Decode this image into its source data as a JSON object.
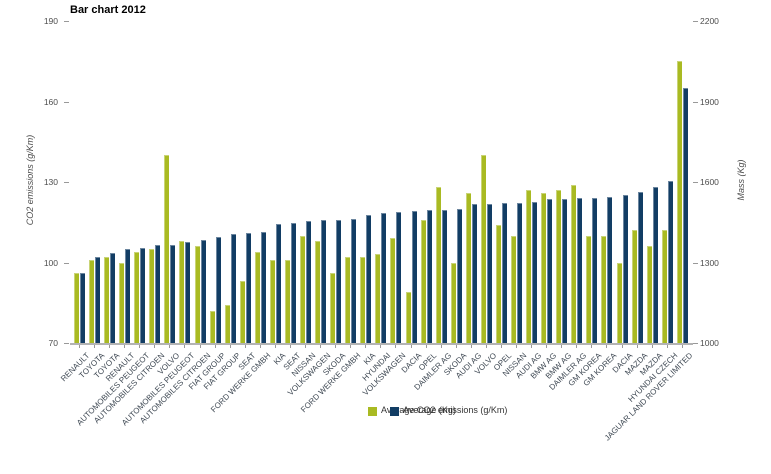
{
  "title": "Bar chart 2012",
  "legend": {
    "co2_label": "Average CO2 emissions (g/Km)",
    "mass_label": "Average (Kg)"
  },
  "chart_data": {
    "type": "bar",
    "title": "Bar chart 2012",
    "grid": false,
    "legend_position": "bottom-center-overlapping",
    "categories": [
      "RENAULT",
      "TOYOTA",
      "TOYOTA",
      "RENAULT",
      "AUTOMOBILES PEUGEOT",
      "AUTOMOBILES CITROEN",
      "VOLVO",
      "AUTOMOBILES PEUGEOT",
      "AUTOMOBILES CITROEN",
      "FIAT GROUP",
      "FIAT GROUP",
      "SEAT",
      "FORD WERKE GMBH",
      "KIA",
      "SEAT",
      "NISSAN",
      "VOLKSWAGEN",
      "SKODA",
      "FORD WERKE GMBH",
      "KIA",
      "HYUNDAI",
      "VOLKSWAGEN",
      "DACIA",
      "OPEL",
      "DAIMLER AG",
      "SKODA",
      "AUDI AG",
      "VOLVO",
      "OPEL",
      "NISSAN",
      "AUDI AG",
      "BMW AG",
      "BMW AG",
      "DAIMLER AG",
      "GM KOREA",
      "GM KOREA",
      "DACIA",
      "MAZDA",
      "MAZDA",
      "HYUNDAI CZECH",
      "JAGUAR LAND ROVER LIMITED"
    ],
    "series": [
      {
        "name": "Average CO2 emissions (g/Km)",
        "axis": "left",
        "color": "#a9ba22",
        "values": [
          96,
          101,
          102,
          100,
          104,
          105,
          140,
          108,
          106,
          82,
          84,
          93,
          104,
          101,
          101,
          110,
          108,
          96,
          102,
          102,
          103,
          109,
          89,
          116,
          128,
          100,
          126,
          140,
          114,
          110,
          127,
          126,
          127,
          129,
          110,
          110,
          100,
          112,
          106,
          112,
          175
        ]
      },
      {
        "name": "Average (Kg)",
        "axis": "right",
        "color": "#123d64",
        "values": [
          1262,
          1320,
          1334,
          1349,
          1355,
          1364,
          1366,
          1376,
          1384,
          1396,
          1405,
          1411,
          1415,
          1442,
          1446,
          1455,
          1457,
          1458,
          1463,
          1477,
          1486,
          1490,
          1492,
          1494,
          1496,
          1498,
          1517,
          1519,
          1521,
          1523,
          1525,
          1535,
          1536,
          1539,
          1541,
          1545,
          1552,
          1564,
          1583,
          1604,
          1952
        ]
      }
    ],
    "axes": {
      "left": {
        "label": "CO2 emissions (g/Km)",
        "min": 70,
        "max": 190,
        "ticks": [
          70,
          100,
          130,
          160,
          190
        ]
      },
      "right": {
        "label": "Mass (Kg)",
        "min": 1000,
        "max": 2200,
        "ticks": [
          1000,
          1300,
          1600,
          1900,
          2200
        ]
      }
    }
  }
}
